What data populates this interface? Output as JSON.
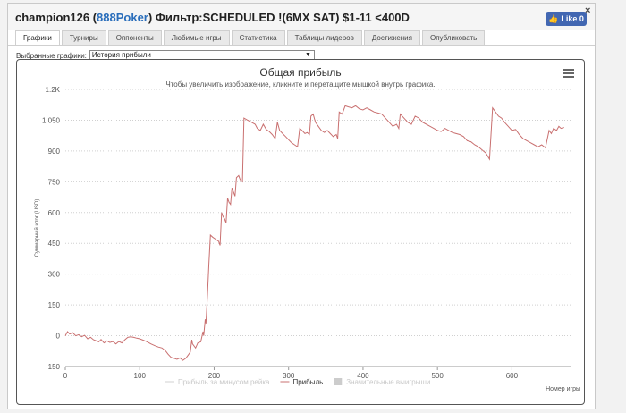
{
  "header": {
    "title_prefix": "champion126 (",
    "site": "888Poker",
    "title_suffix": ") Фильтр:SCHEDULED !(6MX SAT) $1-11 <400D",
    "like_label": "Like 0",
    "close_label": "×"
  },
  "tabs": [
    {
      "label": "Графики",
      "active": true
    },
    {
      "label": "Турниры",
      "active": false
    },
    {
      "label": "Оппоненты",
      "active": false
    },
    {
      "label": "Любимые игры",
      "active": false
    },
    {
      "label": "Статистика",
      "active": false
    },
    {
      "label": "Таблицы лидеров",
      "active": false
    },
    {
      "label": "Достижения",
      "active": false
    },
    {
      "label": "Опубликовать",
      "active": false
    }
  ],
  "selector": {
    "label": "Выбранные графики:",
    "value": "История прибыли"
  },
  "colors": {
    "line": "#c97070",
    "grid": "#d0d0d0",
    "axis_text": "#555555",
    "accent": "#2a6ebb",
    "facebook": "#4267b2"
  },
  "chart_data": {
    "type": "line",
    "title": "Общая прибыль",
    "subtitle": "Чтобы увеличить изображение, кликните и перетащите мышкой внутрь графика.",
    "xlabel": "Номер игры",
    "ylabel": "Суммарный итог (USD)",
    "xlim": [
      0,
      680
    ],
    "ylim": [
      -150,
      1200
    ],
    "x_ticks": [
      0,
      100,
      200,
      300,
      400,
      500,
      600
    ],
    "y_ticks": [
      -150,
      0,
      150,
      300,
      450,
      600,
      750,
      900,
      1050,
      1200
    ],
    "y_tick_labels": [
      "−150",
      "0",
      "150",
      "300",
      "450",
      "600",
      "750",
      "900",
      "1,050",
      "1.2K"
    ],
    "grid": "horizontal dotted",
    "legend_position": "bottom",
    "legend": [
      {
        "label": "Прибыль за минусом рейка",
        "style": "line",
        "visible": false
      },
      {
        "label": "Прибыль",
        "style": "line",
        "visible": true
      },
      {
        "label": "Значительные выигрыши",
        "style": "box",
        "visible": false
      }
    ],
    "series": [
      {
        "name": "Прибыль",
        "points": [
          [
            0,
            0
          ],
          [
            3,
            20
          ],
          [
            6,
            8
          ],
          [
            10,
            15
          ],
          [
            14,
            0
          ],
          [
            18,
            5
          ],
          [
            22,
            -5
          ],
          [
            26,
            2
          ],
          [
            30,
            -15
          ],
          [
            34,
            -8
          ],
          [
            38,
            -20
          ],
          [
            42,
            -25
          ],
          [
            45,
            -30
          ],
          [
            48,
            -18
          ],
          [
            52,
            -35
          ],
          [
            56,
            -25
          ],
          [
            60,
            -33
          ],
          [
            64,
            -28
          ],
          [
            68,
            -40
          ],
          [
            72,
            -28
          ],
          [
            76,
            -35
          ],
          [
            80,
            -20
          ],
          [
            84,
            -8
          ],
          [
            88,
            -5
          ],
          [
            92,
            -8
          ],
          [
            96,
            -12
          ],
          [
            100,
            -15
          ],
          [
            105,
            -22
          ],
          [
            110,
            -30
          ],
          [
            115,
            -40
          ],
          [
            120,
            -48
          ],
          [
            125,
            -55
          ],
          [
            130,
            -60
          ],
          [
            135,
            -75
          ],
          [
            138,
            -90
          ],
          [
            142,
            -105
          ],
          [
            146,
            -110
          ],
          [
            150,
            -115
          ],
          [
            154,
            -108
          ],
          [
            158,
            -120
          ],
          [
            162,
            -110
          ],
          [
            165,
            -95
          ],
          [
            168,
            -80
          ],
          [
            170,
            -20
          ],
          [
            171,
            -40
          ],
          [
            175,
            -60
          ],
          [
            178,
            -35
          ],
          [
            182,
            -30
          ],
          [
            185,
            20
          ],
          [
            186,
            0
          ],
          [
            188,
            80
          ],
          [
            189,
            60
          ],
          [
            191,
            200
          ],
          [
            193,
            350
          ],
          [
            195,
            490
          ],
          [
            198,
            480
          ],
          [
            202,
            470
          ],
          [
            206,
            460
          ],
          [
            208,
            440
          ],
          [
            210,
            600
          ],
          [
            212,
            580
          ],
          [
            214,
            570
          ],
          [
            216,
            550
          ],
          [
            218,
            670
          ],
          [
            220,
            650
          ],
          [
            222,
            640
          ],
          [
            224,
            720
          ],
          [
            226,
            700
          ],
          [
            228,
            680
          ],
          [
            230,
            770
          ],
          [
            233,
            780
          ],
          [
            235,
            760
          ],
          [
            238,
            750
          ],
          [
            240,
            1060
          ],
          [
            245,
            1050
          ],
          [
            250,
            1040
          ],
          [
            255,
            1030
          ],
          [
            258,
            1010
          ],
          [
            262,
            1000
          ],
          [
            266,
            1030
          ],
          [
            270,
            1005
          ],
          [
            274,
            995
          ],
          [
            278,
            980
          ],
          [
            282,
            960
          ],
          [
            285,
            1040
          ],
          [
            288,
            1000
          ],
          [
            292,
            985
          ],
          [
            296,
            970
          ],
          [
            300,
            955
          ],
          [
            304,
            940
          ],
          [
            308,
            930
          ],
          [
            312,
            920
          ],
          [
            315,
            1010
          ],
          [
            318,
            1000
          ],
          [
            322,
            985
          ],
          [
            325,
            990
          ],
          [
            328,
            980
          ],
          [
            330,
            1070
          ],
          [
            333,
            1080
          ],
          [
            336,
            1040
          ],
          [
            340,
            1020
          ],
          [
            344,
            1000
          ],
          [
            348,
            990
          ],
          [
            352,
            1000
          ],
          [
            356,
            985
          ],
          [
            360,
            970
          ],
          [
            364,
            980
          ],
          [
            366,
            960
          ],
          [
            368,
            1090
          ],
          [
            372,
            1080
          ],
          [
            376,
            1120
          ],
          [
            380,
            1115
          ],
          [
            385,
            1110
          ],
          [
            390,
            1120
          ],
          [
            395,
            1105
          ],
          [
            400,
            1100
          ],
          [
            405,
            1110
          ],
          [
            410,
            1100
          ],
          [
            415,
            1090
          ],
          [
            420,
            1085
          ],
          [
            425,
            1080
          ],
          [
            430,
            1060
          ],
          [
            435,
            1040
          ],
          [
            440,
            1020
          ],
          [
            445,
            1030
          ],
          [
            448,
            1010
          ],
          [
            450,
            1080
          ],
          [
            455,
            1060
          ],
          [
            460,
            1040
          ],
          [
            465,
            1030
          ],
          [
            470,
            1070
          ],
          [
            475,
            1060
          ],
          [
            480,
            1040
          ],
          [
            485,
            1030
          ],
          [
            490,
            1020
          ],
          [
            495,
            1010
          ],
          [
            500,
            1000
          ],
          [
            505,
            995
          ],
          [
            510,
            1010
          ],
          [
            515,
            1000
          ],
          [
            520,
            990
          ],
          [
            525,
            985
          ],
          [
            530,
            980
          ],
          [
            535,
            970
          ],
          [
            540,
            950
          ],
          [
            545,
            945
          ],
          [
            550,
            930
          ],
          [
            555,
            920
          ],
          [
            560,
            905
          ],
          [
            565,
            890
          ],
          [
            570,
            860
          ],
          [
            574,
            1110
          ],
          [
            578,
            1090
          ],
          [
            582,
            1070
          ],
          [
            586,
            1060
          ],
          [
            590,
            1040
          ],
          [
            595,
            1020
          ],
          [
            600,
            1000
          ],
          [
            605,
            1005
          ],
          [
            610,
            980
          ],
          [
            615,
            960
          ],
          [
            620,
            950
          ],
          [
            625,
            940
          ],
          [
            630,
            930
          ],
          [
            635,
            920
          ],
          [
            640,
            930
          ],
          [
            645,
            915
          ],
          [
            650,
            1000
          ],
          [
            653,
            985
          ],
          [
            656,
            1010
          ],
          [
            660,
            1000
          ],
          [
            663,
            1020
          ],
          [
            666,
            1010
          ],
          [
            670,
            1015
          ]
        ]
      }
    ]
  }
}
